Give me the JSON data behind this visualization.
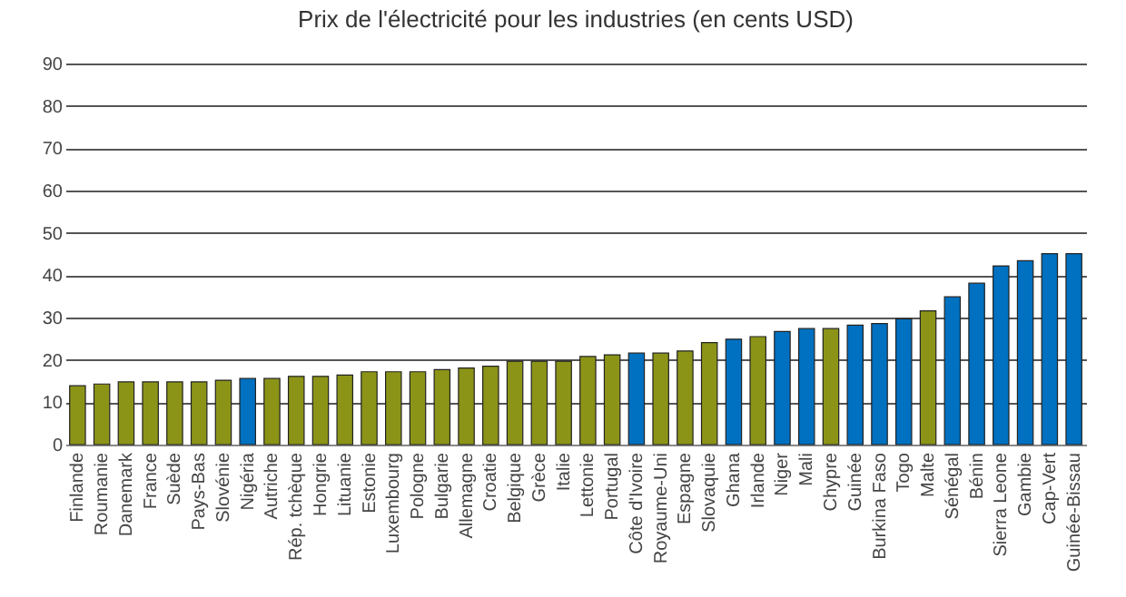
{
  "chart_data": {
    "type": "bar",
    "title": "Prix de l'électricité pour les industries (en cents USD)",
    "categories": [
      "Finlande",
      "Roumanie",
      "Danemark",
      "France",
      "Suède",
      "Pays-Bas",
      "Slovénie",
      "Nigéria",
      "Autriche",
      "Rép. tchèque",
      "Hongrie",
      "Lituanie",
      "Estonie",
      "Luxembourg",
      "Pologne",
      "Bulgarie",
      "Allemagne",
      "Croatie",
      "Belgique",
      "Grèce",
      "Italie",
      "Lettonie",
      "Portugal",
      "Côte d'Ivoire",
      "Royaume-Uni",
      "Espagne",
      "Slovaquie",
      "Ghana",
      "Irlande",
      "Niger",
      "Mali",
      "Chypre",
      "Guinée",
      "Burkina Faso",
      "Togo",
      "Malte",
      "Sénégal",
      "Bénin",
      "Sierra Leone",
      "Gambie",
      "Cap-Vert",
      "Guinée-Bissau"
    ],
    "values": [
      13.9,
      14.3,
      14.8,
      14.8,
      14.8,
      14.8,
      15.2,
      15.6,
      15.6,
      16.1,
      16.1,
      16.4,
      17.2,
      17.2,
      17.2,
      17.7,
      18.1,
      18.5,
      19.7,
      19.7,
      19.7,
      20.8,
      21.2,
      21.6,
      21.6,
      22.1,
      24.1,
      24.9,
      25.5,
      26.7,
      27.4,
      27.4,
      28.2,
      28.6,
      29.7,
      31.6,
      34.9,
      38.1,
      42.2,
      43.4,
      45.1,
      45.1
    ],
    "colors": [
      "#8c9418",
      "#8c9418",
      "#8c9418",
      "#8c9418",
      "#8c9418",
      "#8c9418",
      "#8c9418",
      "#0070c0",
      "#8c9418",
      "#8c9418",
      "#8c9418",
      "#8c9418",
      "#8c9418",
      "#8c9418",
      "#8c9418",
      "#8c9418",
      "#8c9418",
      "#8c9418",
      "#8c9418",
      "#8c9418",
      "#8c9418",
      "#8c9418",
      "#8c9418",
      "#0070c0",
      "#8c9418",
      "#8c9418",
      "#8c9418",
      "#0070c0",
      "#8c9418",
      "#0070c0",
      "#0070c0",
      "#8c9418",
      "#0070c0",
      "#0070c0",
      "#0070c0",
      "#8c9418",
      "#0070c0",
      "#0070c0",
      "#0070c0",
      "#0070c0",
      "#0070c0",
      "#0070c0"
    ],
    "ylim": [
      0,
      90
    ],
    "yticks": [
      0,
      10,
      20,
      30,
      40,
      50,
      60,
      70,
      80,
      90
    ],
    "grid": "y"
  }
}
